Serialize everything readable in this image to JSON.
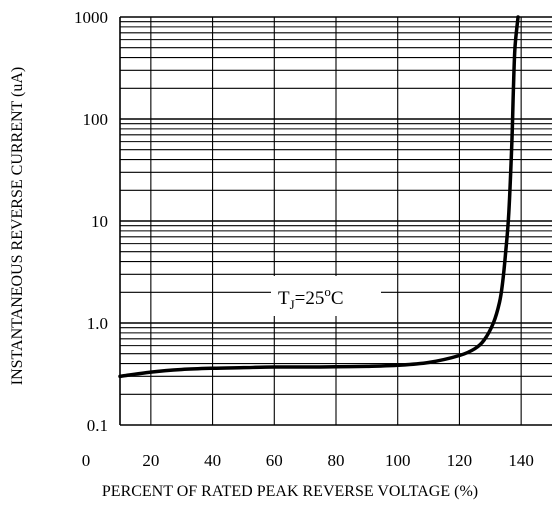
{
  "chart_data": {
    "type": "line",
    "title": "",
    "xlabel": "PERCENT OF RATED PEAK REVERSE VOLTAGE (%)",
    "ylabel": "INSTANTANEOUS REVERSE CURRENT (uA)",
    "xlim": [
      10,
      150
    ],
    "ylim": [
      0.1,
      1000
    ],
    "y_scale": "log",
    "grid": true,
    "x_ticks": [
      "0",
      "20",
      "40",
      "60",
      "80",
      "100",
      "120",
      "140"
    ],
    "y_ticks": [
      "0.1",
      "1.0",
      "10",
      "100",
      "1000"
    ],
    "annotation": {
      "main": "T",
      "sub": "J",
      "rest": "=25",
      "sup": "o",
      "unit": "C"
    },
    "series": [
      {
        "x": [
          10,
          20,
          30,
          40,
          50,
          60,
          70,
          80,
          90,
          100,
          110,
          120,
          125,
          128,
          131,
          133,
          134,
          135,
          136,
          137,
          137.5,
          138,
          139
        ],
        "y": [
          0.3,
          0.33,
          0.35,
          0.36,
          0.365,
          0.37,
          0.37,
          0.372,
          0.376,
          0.385,
          0.41,
          0.48,
          0.56,
          0.68,
          1.0,
          1.6,
          2.5,
          5,
          12,
          60,
          200,
          500,
          1000
        ]
      }
    ]
  }
}
